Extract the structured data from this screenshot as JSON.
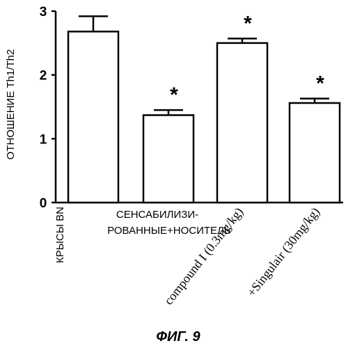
{
  "chart_data": {
    "type": "bar",
    "ylabel": "ОТНОШЕНИЕ Th1/Th2",
    "ylim": [
      0,
      3
    ],
    "yticks": [
      "0",
      "1",
      "2",
      "3"
    ],
    "categories": [
      "КРЫСЫ BN",
      "СЕНСАБИЛИЗИ- РОВАННЫЕ+НОСИТЕЛЬ",
      "compound I (0.3mg/kg)",
      "+Singulair (30mg/kg)"
    ],
    "values": [
      2.68,
      1.37,
      2.5,
      1.56
    ],
    "errors": [
      0.24,
      0.08,
      0.07,
      0.07
    ],
    "significance": [
      "",
      "*",
      "*",
      "*"
    ],
    "figure_caption": "ФИГ. 9"
  },
  "labels": {
    "cat2_line1": "СЕНСАБИЛИЗИ-",
    "cat2_line2": "РОВАННЫЕ+НОСИТЕЛЬ"
  }
}
